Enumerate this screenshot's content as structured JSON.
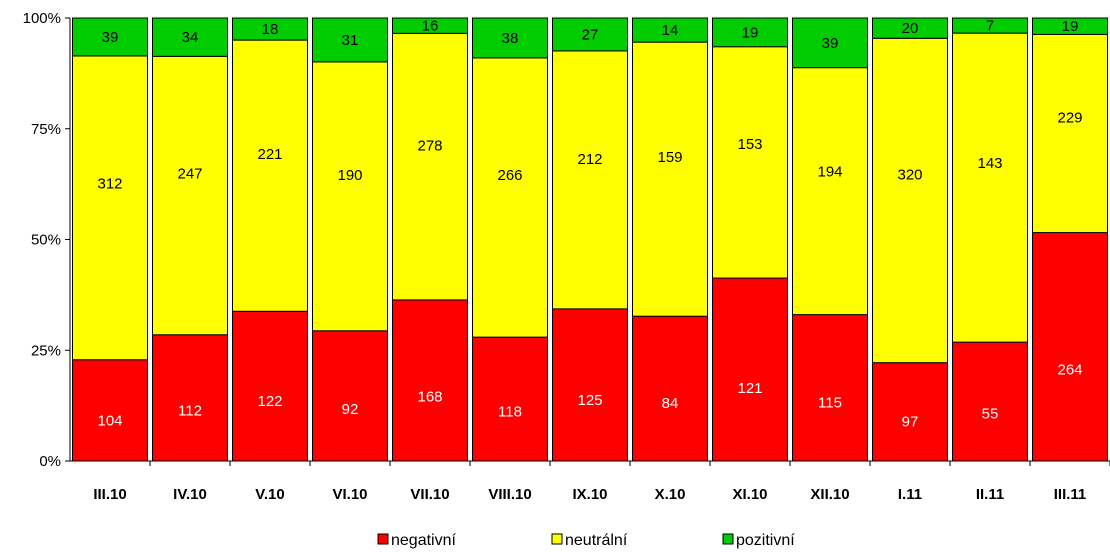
{
  "chart_data": {
    "type": "bar",
    "stacked": "percent",
    "categories": [
      "III.10",
      "IV.10",
      "V.10",
      "VI.10",
      "VII.10",
      "VIII.10",
      "IX.10",
      "X.10",
      "XI.10",
      "XII.10",
      "I.11",
      "II.11",
      "III.11"
    ],
    "series": [
      {
        "name": "negativní",
        "color": "#ff0000",
        "label_color": "#ffffff",
        "values": [
          104,
          112,
          122,
          92,
          168,
          118,
          125,
          84,
          121,
          115,
          97,
          55,
          264
        ]
      },
      {
        "name": "neutrální",
        "color": "#ffff00",
        "label_color": "#000000",
        "values": [
          312,
          247,
          221,
          190,
          278,
          266,
          212,
          159,
          153,
          194,
          320,
          143,
          229
        ]
      },
      {
        "name": "pozitivní",
        "color": "#00cc00",
        "label_color": "#000000",
        "values": [
          39,
          34,
          18,
          31,
          16,
          38,
          27,
          14,
          19,
          39,
          20,
          7,
          19
        ]
      }
    ],
    "y_ticks": [
      "0%",
      "25%",
      "50%",
      "75%",
      "100%"
    ],
    "ylim": [
      0,
      100
    ],
    "grid": false,
    "legend_position": "bottom"
  }
}
